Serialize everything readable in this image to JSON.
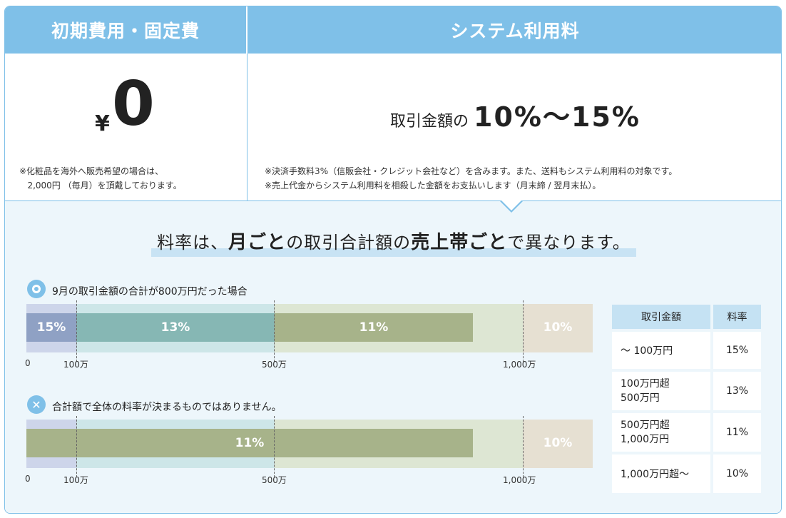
{
  "header": {
    "left_title": "初期費用・固定費",
    "right_title": "システム利用料"
  },
  "initial": {
    "currency": "¥",
    "amount": "0",
    "note_line1": "※化粧品を海外へ販売希望の場合は、",
    "note_line2": "   2,000円 （毎月）を頂戴しております。"
  },
  "system_fee": {
    "prefix": "取引金額の",
    "range": "10%～15%",
    "note_line1": "※決済手数料3%（信販会社・クレジット会社など）を含みます。また、送料もシステム利用料の対象です。",
    "note_line2": "※売上代金からシステム利用料を相殺した金額をお支払いします（月末締 / 翌月末払）。"
  },
  "headline": {
    "part1": "料率は、",
    "bold1": "月ごと",
    "part2": "の取引合計額の",
    "bold2": "売上帯ごと",
    "part3": "で異なります。"
  },
  "example_ok": {
    "icon": "correct-circle-icon",
    "text": "9月の取引金額の合計が800万円だった場合",
    "segments": [
      {
        "label": "15%",
        "color": "#8fa1c4"
      },
      {
        "label": "13%",
        "color": "#86b7b4"
      },
      {
        "label": "11%",
        "color": "#a7b38a"
      },
      {
        "label": "10%",
        "color": "#e6e0d2"
      }
    ]
  },
  "example_ng": {
    "icon": "cross-circle-icon",
    "text": "合計額で全体の料率が決まるものではありません。",
    "bar_label": "11%",
    "bar_color": "#a7b38a",
    "right_label": "10%"
  },
  "axis": {
    "t0": "0",
    "t1": "100万",
    "t2": "500万",
    "t3": "1,000万"
  },
  "table": {
    "col1": "取引金額",
    "col2": "料率",
    "rows": [
      {
        "range_line1": "～ 100万円",
        "range_line2": "",
        "rate": "15%"
      },
      {
        "range_line1": "100万円超",
        "range_line2": "500万円",
        "rate": "13%"
      },
      {
        "range_line1": "500万円超",
        "range_line2": "1,000万円",
        "rate": "11%"
      },
      {
        "range_line1": "1,000万円超～",
        "range_line2": "",
        "rate": "10%"
      }
    ]
  },
  "colors": {
    "accent": "#7fc0e8",
    "band_0_100": "#cdd5ea",
    "band_100_500": "#cde6e8",
    "band_500_1000": "#dde6d3",
    "band_1000_plus": "#e6e0d2"
  }
}
